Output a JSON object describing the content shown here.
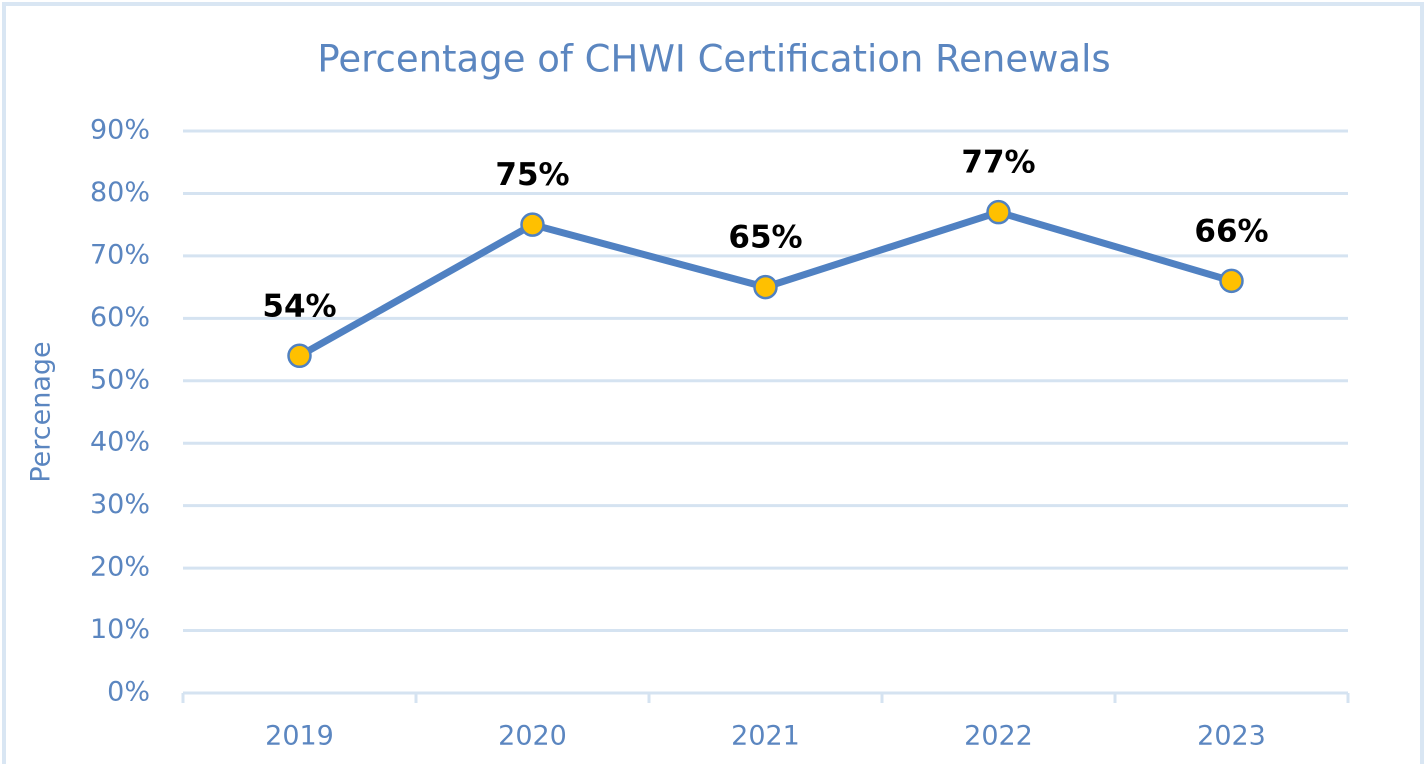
{
  "chart_data": {
    "type": "line",
    "title": "Percentage of CHWI Certification Renewals",
    "y_label": "Percenage",
    "categories": [
      "2019",
      "2020",
      "2021",
      "2022",
      "2023"
    ],
    "values": [
      54,
      75,
      65,
      77,
      66
    ],
    "value_labels": [
      "54%",
      "75%",
      "65%",
      "77%",
      "66%"
    ],
    "color": "#5081c2",
    "marker_color": "#ffc000",
    "ylim": [
      0,
      90
    ],
    "yticks": [
      {
        "value": 0,
        "label": "0%"
      },
      {
        "value": 10,
        "label": "10%"
      },
      {
        "value": 20,
        "label": "20%"
      },
      {
        "value": 30,
        "label": "30%"
      },
      {
        "value": 40,
        "label": "40%"
      },
      {
        "value": 50,
        "label": "50%"
      },
      {
        "value": 60,
        "label": "60%"
      },
      {
        "value": 70,
        "label": "70%"
      },
      {
        "value": 80,
        "label": "80%"
      },
      {
        "value": 90,
        "label": "90%"
      }
    ],
    "grid": true
  }
}
